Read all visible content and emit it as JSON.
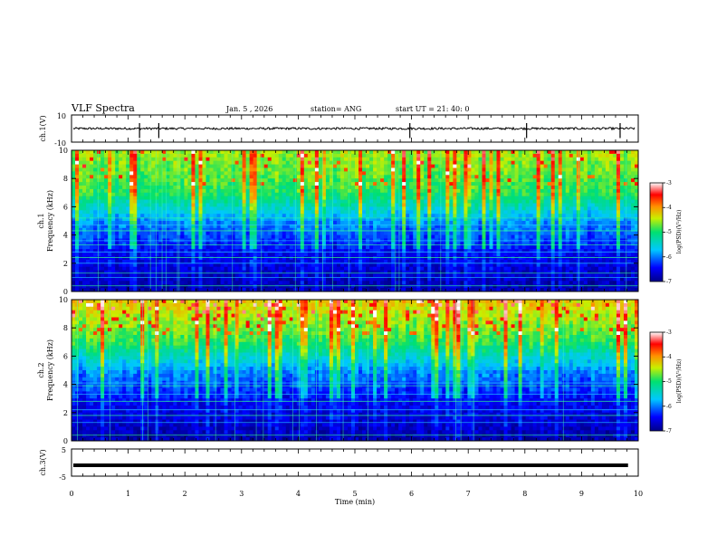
{
  "header": {
    "title": "VLF Spectra",
    "date": "Jan. 5 , 2026",
    "station": "station= ANG",
    "start_ut": "start UT = 21: 40: 0"
  },
  "chart_data": [
    {
      "type": "line",
      "panel": "ch1-waveform",
      "ylabel": "ch.1(V)",
      "ylim": [
        -10,
        10
      ],
      "yticks": [
        "10",
        "-10"
      ],
      "baseline": 0,
      "spikes_min": [
        1.2,
        1.54,
        5.97,
        8.03,
        9.68
      ]
    },
    {
      "type": "heatmap",
      "panel": "ch1-spectrogram",
      "ylabel": "ch.1\nFrequency (kHz)",
      "ylim": [
        0,
        10
      ],
      "yticks": [
        "0",
        "2",
        "4",
        "6",
        "8",
        "10"
      ],
      "xlim": [
        0,
        10
      ],
      "colorbar": {
        "label": "log(PSD)(V²/Hz)",
        "range": [
          -7,
          -3
        ],
        "ticks": [
          "-3",
          "-4",
          "-5",
          "-6",
          "-7"
        ]
      }
    },
    {
      "type": "heatmap",
      "panel": "ch2-spectrogram",
      "ylabel": "ch.2\nFrequency (kHz)",
      "ylim": [
        0,
        10
      ],
      "yticks": [
        "0",
        "2",
        "4",
        "6",
        "8",
        "10"
      ],
      "xlim": [
        0,
        10
      ],
      "colorbar": {
        "label": "log(PSD)(V²/Hz)",
        "range": [
          -7,
          -3
        ],
        "ticks": [
          "-3",
          "-4",
          "-5",
          "-6",
          "-7"
        ]
      }
    },
    {
      "type": "line",
      "panel": "ch3-waveform",
      "ylabel": "ch.3(V)",
      "ylim": [
        -5,
        5
      ],
      "yticks": [
        "5",
        "-5"
      ],
      "constant_value": -1,
      "xlabel": "Time (min)",
      "xlim": [
        0,
        10
      ],
      "xticks": [
        "0",
        "1",
        "2",
        "3",
        "4",
        "5",
        "6",
        "7",
        "8",
        "9",
        "10"
      ],
      "data_end_min": 9.82
    }
  ],
  "labels": {
    "ch1_axis": "ch.1(V)",
    "ch1_spec_a": "ch.1",
    "ch1_spec_b": "Frequency (kHz)",
    "ch2_spec_a": "ch.2",
    "ch2_spec_b": "Frequency (kHz)",
    "ch3_axis": "ch.3(V)",
    "time_axis": "Time (min)",
    "cbar1": "log(PSD)(V²/Hz)",
    "cbar2": "log(PSD)(V²/Hz)"
  }
}
